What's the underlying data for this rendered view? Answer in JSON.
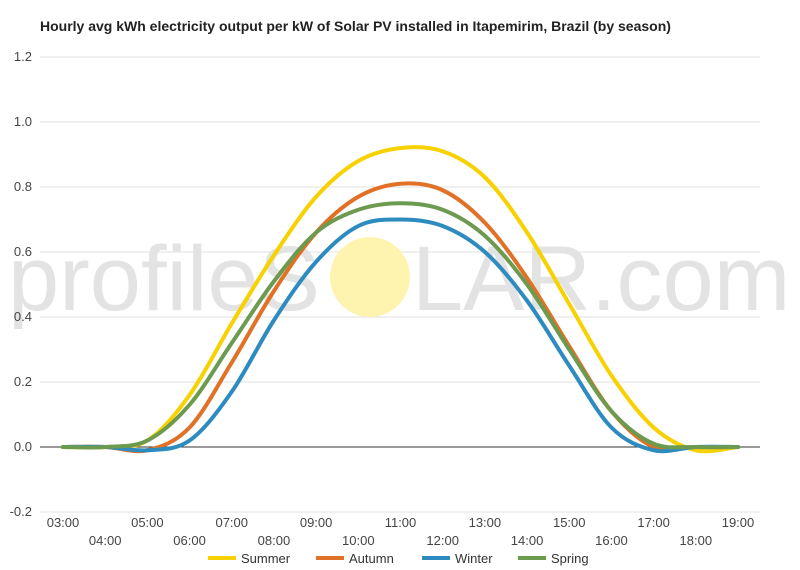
{
  "title": "Hourly avg kWh electricity output per kW of Solar PV installed in Itapemirim, Brazil (by season)",
  "watermark": {
    "left": "profileS",
    "sun": "O",
    "right": "LAR.com",
    "sun_color": "#fff3b0"
  },
  "chart_data": {
    "type": "line",
    "title": "Hourly avg kWh electricity output per kW of Solar PV installed in Itapemirim, Brazil (by season)",
    "xlabel": "",
    "ylabel": "",
    "ylim": [
      -0.2,
      1.2
    ],
    "yticks": [
      "-0.2",
      "0.0",
      "0.2",
      "0.4",
      "0.6",
      "0.8",
      "1.0",
      "1.2"
    ],
    "x": [
      "03:00",
      "04:00",
      "05:00",
      "06:00",
      "07:00",
      "08:00",
      "09:00",
      "10:00",
      "11:00",
      "12:00",
      "13:00",
      "14:00",
      "15:00",
      "16:00",
      "17:00",
      "18:00",
      "19:00"
    ],
    "grid": true,
    "legend_position": "bottom",
    "series": [
      {
        "name": "Summer",
        "color": "#f7d100",
        "values": [
          0.0,
          0.0,
          0.02,
          0.16,
          0.38,
          0.59,
          0.77,
          0.88,
          0.92,
          0.91,
          0.83,
          0.66,
          0.44,
          0.22,
          0.06,
          -0.01,
          0.0
        ]
      },
      {
        "name": "Autumn",
        "color": "#e07126",
        "values": [
          0.0,
          0.0,
          -0.01,
          0.06,
          0.26,
          0.48,
          0.66,
          0.77,
          0.81,
          0.79,
          0.69,
          0.52,
          0.31,
          0.11,
          0.0,
          0.0,
          0.0
        ]
      },
      {
        "name": "Winter",
        "color": "#2e8bc0",
        "values": [
          0.0,
          0.0,
          -0.01,
          0.02,
          0.17,
          0.39,
          0.57,
          0.68,
          0.7,
          0.68,
          0.6,
          0.45,
          0.25,
          0.06,
          -0.01,
          0.0,
          0.0
        ]
      },
      {
        "name": "Spring",
        "color": "#6c9a4f",
        "values": [
          0.0,
          0.0,
          0.02,
          0.13,
          0.32,
          0.51,
          0.66,
          0.73,
          0.75,
          0.73,
          0.65,
          0.5,
          0.3,
          0.11,
          0.01,
          0.0,
          0.0
        ]
      }
    ]
  }
}
